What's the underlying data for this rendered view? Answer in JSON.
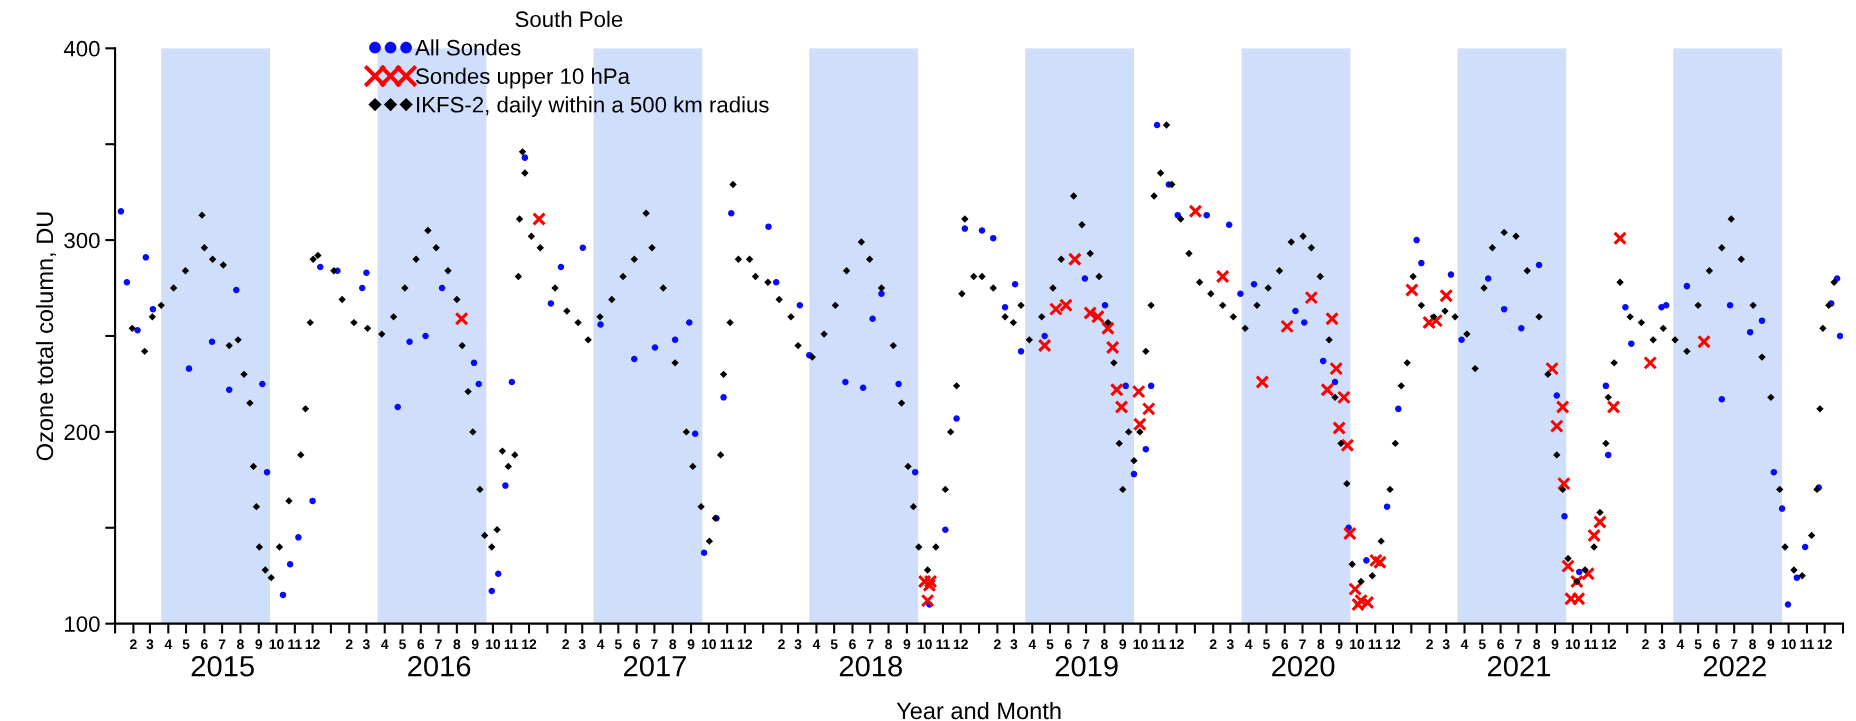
{
  "chart_data": {
    "type": "scatter",
    "xlabel": "Year and Month",
    "ylabel": "Ozone total column, DU",
    "legend_title": "South Pole",
    "legend": "top left",
    "grid": false,
    "xlim": [
      "2015-01-01",
      "2023-01-01"
    ],
    "ylim": [
      100,
      400
    ],
    "yticks": [
      100,
      {
        "value": 150,
        "label": null
      },
      200,
      {
        "value": 250,
        "label": null
      },
      300,
      {
        "value": 350,
        "label": null
      },
      400
    ],
    "xticks": [
      {
        "value": "2015-01-01",
        "label": null
      },
      {
        "value": "2015-02-01",
        "label": "2"
      },
      {
        "value": "2015-03-01",
        "label": "3"
      },
      {
        "value": "2015-04-01",
        "label": "4"
      },
      {
        "value": "2015-05-01",
        "label": "5"
      },
      {
        "value": "2015-06-01",
        "label": "6"
      },
      {
        "value": "2015-07-01",
        "label": "7"
      },
      {
        "value": "2015-08-01",
        "label": "8"
      },
      {
        "value": "2015-09-01",
        "label": "9"
      },
      {
        "value": "2015-10-01",
        "label": "10"
      },
      {
        "value": "2015-11-01",
        "label": "11"
      },
      {
        "value": "2015-12-01",
        "label": "12"
      },
      {
        "value": "2016-01-01",
        "label": null
      },
      {
        "value": "2016-02-01",
        "label": "2"
      },
      {
        "value": "2016-03-01",
        "label": "3"
      },
      {
        "value": "2016-04-01",
        "label": "4"
      },
      {
        "value": "2016-05-01",
        "label": "5"
      },
      {
        "value": "2016-06-01",
        "label": "6"
      },
      {
        "value": "2016-07-01",
        "label": "7"
      },
      {
        "value": "2016-08-01",
        "label": "8"
      },
      {
        "value": "2016-09-01",
        "label": "9"
      },
      {
        "value": "2016-10-01",
        "label": "10"
      },
      {
        "value": "2016-11-01",
        "label": "11"
      },
      {
        "value": "2016-12-01",
        "label": "12"
      },
      {
        "value": "2017-01-01",
        "label": null
      },
      {
        "value": "2017-02-01",
        "label": "2"
      },
      {
        "value": "2017-03-01",
        "label": "3"
      },
      {
        "value": "2017-04-01",
        "label": "4"
      },
      {
        "value": "2017-05-01",
        "label": "5"
      },
      {
        "value": "2017-06-01",
        "label": "6"
      },
      {
        "value": "2017-07-01",
        "label": "7"
      },
      {
        "value": "2017-08-01",
        "label": "8"
      },
      {
        "value": "2017-09-01",
        "label": "9"
      },
      {
        "value": "2017-10-01",
        "label": "10"
      },
      {
        "value": "2017-11-01",
        "label": "11"
      },
      {
        "value": "2017-12-01",
        "label": "12"
      },
      {
        "value": "2018-01-01",
        "label": null
      },
      {
        "value": "2018-02-01",
        "label": "2"
      },
      {
        "value": "2018-03-01",
        "label": "3"
      },
      {
        "value": "2018-04-01",
        "label": "4"
      },
      {
        "value": "2018-05-01",
        "label": "5"
      },
      {
        "value": "2018-06-01",
        "label": "6"
      },
      {
        "value": "2018-07-01",
        "label": "7"
      },
      {
        "value": "2018-08-01",
        "label": "8"
      },
      {
        "value": "2018-09-01",
        "label": "9"
      },
      {
        "value": "2018-10-01",
        "label": "10"
      },
      {
        "value": "2018-11-01",
        "label": "11"
      },
      {
        "value": "2018-12-01",
        "label": "12"
      },
      {
        "value": "2019-01-01",
        "label": null
      },
      {
        "value": "2019-02-01",
        "label": "2"
      },
      {
        "value": "2019-03-01",
        "label": "3"
      },
      {
        "value": "2019-04-01",
        "label": "4"
      },
      {
        "value": "2019-05-01",
        "label": "5"
      },
      {
        "value": "2019-06-01",
        "label": "6"
      },
      {
        "value": "2019-07-01",
        "label": "7"
      },
      {
        "value": "2019-08-01",
        "label": "8"
      },
      {
        "value": "2019-09-01",
        "label": "9"
      },
      {
        "value": "2019-10-01",
        "label": "10"
      },
      {
        "value": "2019-11-01",
        "label": "11"
      },
      {
        "value": "2019-12-01",
        "label": "12"
      },
      {
        "value": "2020-01-01",
        "label": null
      },
      {
        "value": "2020-02-01",
        "label": "2"
      },
      {
        "value": "2020-03-01",
        "label": "3"
      },
      {
        "value": "2020-04-01",
        "label": "4"
      },
      {
        "value": "2020-05-01",
        "label": "5"
      },
      {
        "value": "2020-06-01",
        "label": "6"
      },
      {
        "value": "2020-07-01",
        "label": "7"
      },
      {
        "value": "2020-08-01",
        "label": "8"
      },
      {
        "value": "2020-09-01",
        "label": "9"
      },
      {
        "value": "2020-10-01",
        "label": "10"
      },
      {
        "value": "2020-11-01",
        "label": "11"
      },
      {
        "value": "2020-12-01",
        "label": "12"
      },
      {
        "value": "2021-01-01",
        "label": null
      },
      {
        "value": "2021-02-01",
        "label": "2"
      },
      {
        "value": "2021-03-01",
        "label": "3"
      },
      {
        "value": "2021-04-01",
        "label": "4"
      },
      {
        "value": "2021-05-01",
        "label": "5"
      },
      {
        "value": "2021-06-01",
        "label": "6"
      },
      {
        "value": "2021-07-01",
        "label": "7"
      },
      {
        "value": "2021-08-01",
        "label": "8"
      },
      {
        "value": "2021-09-01",
        "label": "9"
      },
      {
        "value": "2021-10-01",
        "label": "10"
      },
      {
        "value": "2021-11-01",
        "label": "11"
      },
      {
        "value": "2021-12-01",
        "label": "12"
      },
      {
        "value": "2022-01-01",
        "label": null
      },
      {
        "value": "2022-02-01",
        "label": "2"
      },
      {
        "value": "2022-03-01",
        "label": "3"
      },
      {
        "value": "2022-04-01",
        "label": "4"
      },
      {
        "value": "2022-05-01",
        "label": "5"
      },
      {
        "value": "2022-06-01",
        "label": "6"
      },
      {
        "value": "2022-07-01",
        "label": "7"
      },
      {
        "value": "2022-08-01",
        "label": "8"
      },
      {
        "value": "2022-09-01",
        "label": "9"
      },
      {
        "value": "2022-10-01",
        "label": "10"
      },
      {
        "value": "2022-11-01",
        "label": "11"
      },
      {
        "value": "2022-12-01",
        "label": "12"
      },
      {
        "value": "2023-01-01",
        "label": null
      }
    ],
    "x2lim": [
      "2015-01-01",
      "2023-01-01"
    ],
    "x2ticks": [
      {
        "value": "2015-07-02",
        "label": "2015"
      },
      {
        "value": "2016-07-02",
        "label": "2016"
      },
      {
        "value": "2017-07-02",
        "label": "2017"
      },
      {
        "value": "2018-07-02",
        "label": "2018"
      },
      {
        "value": "2019-07-02",
        "label": "2019"
      },
      {
        "value": "2020-07-02",
        "label": "2020"
      },
      {
        "value": "2021-07-02",
        "label": "2021"
      },
      {
        "value": "2022-07-02",
        "label": "2022"
      }
    ],
    "bands": [
      {
        "axis": "x",
        "from": "2015-03-20",
        "to": "2015-09-20",
        "color": "#cfdefb"
      },
      {
        "axis": "x",
        "from": "2016-03-20",
        "to": "2016-09-20",
        "color": "#cfdefb"
      },
      {
        "axis": "x",
        "from": "2017-03-20",
        "to": "2017-09-20",
        "color": "#cfdefb"
      },
      {
        "axis": "x",
        "from": "2018-03-20",
        "to": "2018-09-20",
        "color": "#cfdefb"
      },
      {
        "axis": "x",
        "from": "2019-03-20",
        "to": "2019-09-20",
        "color": "#cfdefb"
      },
      {
        "axis": "x",
        "from": "2020-03-20",
        "to": "2020-09-20",
        "color": "#cfdefb"
      },
      {
        "axis": "x",
        "from": "2021-03-20",
        "to": "2021-09-20",
        "color": "#cfdefb"
      },
      {
        "axis": "x",
        "from": "2022-03-20",
        "to": "2022-09-20",
        "color": "#cfdefb"
      }
    ],
    "series": [
      {
        "name": "All Sondes",
        "color": "#0a0aff",
        "marker": "circle",
        "x": [
          "2015-01-11",
          "2015-01-21",
          "2015-02-08",
          "2015-02-22",
          "2015-03-06",
          "2015-05-06",
          "2015-06-14",
          "2015-07-13",
          "2015-07-25",
          "2015-09-07",
          "2015-09-15",
          "2015-10-12",
          "2015-10-24",
          "2015-11-07",
          "2015-12-01",
          "2015-12-14",
          "2016-01-12",
          "2016-02-23",
          "2016-03-01",
          "2016-04-23",
          "2016-05-13",
          "2016-06-09",
          "2016-07-07",
          "2016-08-30",
          "2016-09-07",
          "2016-09-29",
          "2016-10-10",
          "2016-10-22",
          "2016-11-02",
          "2016-11-24",
          "2017-01-07",
          "2017-01-24",
          "2017-03-02",
          "2017-04-01",
          "2017-05-28",
          "2017-07-02",
          "2017-08-05",
          "2017-08-29",
          "2017-09-08",
          "2017-09-23",
          "2017-10-14",
          "2017-10-26",
          "2017-11-08",
          "2018-01-10",
          "2018-01-23",
          "2018-03-04",
          "2018-03-20",
          "2018-05-20",
          "2018-06-19",
          "2018-07-05",
          "2018-07-20",
          "2018-08-18",
          "2018-09-15",
          "2018-10-09",
          "2018-11-05",
          "2018-11-24",
          "2018-12-08",
          "2019-01-06",
          "2019-01-25",
          "2019-02-14",
          "2019-03-03",
          "2019-03-13",
          "2019-04-22",
          "2019-06-29",
          "2019-08-02",
          "2019-09-06",
          "2019-09-20",
          "2019-10-10",
          "2019-10-19",
          "2019-10-29",
          "2019-11-18",
          "2019-12-03",
          "2020-01-21",
          "2020-02-28",
          "2020-03-18",
          "2020-04-10",
          "2020-06-19",
          "2020-07-04",
          "2020-08-05",
          "2020-08-25",
          "2020-09-17",
          "2020-10-17",
          "2020-11-21",
          "2020-12-10",
          "2021-01-10",
          "2021-01-18",
          "2021-03-09",
          "2021-03-27",
          "2021-05-11",
          "2021-06-07",
          "2021-07-06",
          "2021-08-05",
          "2021-09-04",
          "2021-09-17",
          "2021-10-12",
          "2021-11-26",
          "2021-11-30",
          "2021-12-29",
          "2022-01-08",
          "2022-02-28",
          "2022-03-08",
          "2022-04-12",
          "2022-06-10",
          "2022-06-24",
          "2022-07-28",
          "2022-08-17",
          "2022-09-06",
          "2022-09-20",
          "2022-09-30",
          "2022-10-15",
          "2022-10-29",
          "2022-11-21",
          "2022-12-12",
          "2022-12-22",
          "2022-12-27"
        ],
        "values": [
          315,
          278,
          253,
          291,
          264,
          233,
          247,
          222,
          274,
          225,
          179,
          115,
          131,
          145,
          164,
          286,
          284,
          275,
          283,
          213,
          247,
          250,
          275,
          236,
          225,
          117,
          126,
          172,
          226,
          343,
          267,
          286,
          296,
          256,
          238,
          244,
          248,
          257,
          199,
          137,
          155,
          218,
          314,
          307,
          278,
          266,
          240,
          226,
          223,
          259,
          272,
          225,
          179,
          110,
          149,
          207,
          306,
          305,
          301,
          265,
          277,
          242,
          250,
          280,
          266,
          224,
          178,
          191,
          224,
          360,
          329,
          313,
          313,
          308,
          272,
          277,
          263,
          257,
          237,
          226,
          150,
          133,
          161,
          212,
          300,
          288,
          282,
          248,
          280,
          264,
          254,
          287,
          219,
          156,
          127,
          224,
          188,
          265,
          246,
          265,
          266,
          276,
          217,
          266,
          252,
          258,
          179,
          160,
          110,
          124,
          140,
          171,
          267,
          280,
          250
        ]
      },
      {
        "name": "Sondes upper 10 hPa",
        "color": "#ff0000",
        "marker": "cross",
        "x": [
          "2016-08-09",
          "2016-12-18",
          "2018-10-01",
          "2018-10-06",
          "2018-10-09",
          "2018-10-11",
          "2019-04-22",
          "2019-05-11",
          "2019-05-28",
          "2019-06-12",
          "2019-07-08",
          "2019-07-21",
          "2019-08-07",
          "2019-08-15",
          "2019-08-22",
          "2019-08-30",
          "2019-09-28",
          "2019-09-30",
          "2019-10-15",
          "2020-01-02",
          "2020-02-17",
          "2020-04-24",
          "2020-06-05",
          "2020-07-16",
          "2020-08-12",
          "2020-08-20",
          "2020-08-27",
          "2020-09-01",
          "2020-09-09",
          "2020-09-15",
          "2020-09-19",
          "2020-09-28",
          "2020-10-03",
          "2020-10-08",
          "2020-10-19",
          "2020-11-02",
          "2020-11-09",
          "2021-01-02",
          "2021-01-31",
          "2021-02-12",
          "2021-03-01",
          "2021-08-27",
          "2021-09-04",
          "2021-09-14",
          "2021-09-16",
          "2021-09-23",
          "2021-09-28",
          "2021-10-08",
          "2021-10-11",
          "2021-10-27",
          "2021-11-06",
          "2021-11-16",
          "2021-12-09",
          "2021-12-20",
          "2022-02-09",
          "2022-05-11"
        ],
        "values": [
          259,
          311,
          122,
          112,
          120,
          122,
          245,
          264,
          266,
          290,
          262,
          260,
          254,
          244,
          222,
          213,
          221,
          204,
          212,
          315,
          281,
          226,
          255,
          270,
          222,
          259,
          233,
          202,
          218,
          193,
          147,
          118,
          110,
          112,
          111,
          133,
          132,
          274,
          257,
          258,
          271,
          233,
          203,
          213,
          173,
          130,
          113,
          122,
          113,
          126,
          146,
          153,
          213,
          301,
          236,
          247
        ]
      },
      {
        "name": "IKFS-2, daily within a 500 km radius",
        "color": "#000000",
        "marker": "diamond",
        "x": [
          "2015-01-30",
          "2015-02-20",
          "2015-03-05",
          "2015-03-20",
          "2015-04-10",
          "2015-04-30",
          "2015-05-28",
          "2015-06-01",
          "2015-06-15",
          "2015-07-03",
          "2015-07-13",
          "2015-07-28",
          "2015-08-07",
          "2015-08-17",
          "2015-08-23",
          "2015-08-28",
          "2015-09-02",
          "2015-09-12",
          "2015-09-22",
          "2015-10-06",
          "2015-10-22",
          "2015-11-11",
          "2015-11-19",
          "2015-11-27",
          "2015-12-02",
          "2015-12-10",
          "2016-01-06",
          "2016-01-20",
          "2016-02-09",
          "2016-03-03",
          "2016-03-27",
          "2016-04-16",
          "2016-05-05",
          "2016-05-24",
          "2016-06-13",
          "2016-06-27",
          "2016-07-17",
          "2016-08-01",
          "2016-08-10",
          "2016-08-20",
          "2016-08-28",
          "2016-09-09",
          "2016-09-17",
          "2016-09-29",
          "2016-10-08",
          "2016-10-17",
          "2016-10-27",
          "2016-11-07",
          "2016-11-13",
          "2016-11-15",
          "2016-11-20",
          "2016-11-24",
          "2016-12-05",
          "2016-12-20",
          "2017-01-14",
          "2017-02-03",
          "2017-02-22",
          "2017-03-11",
          "2017-03-31",
          "2017-04-20",
          "2017-05-09",
          "2017-05-28",
          "2017-06-17",
          "2017-06-27",
          "2017-07-16",
          "2017-08-05",
          "2017-08-24",
          "2017-09-04",
          "2017-09-18",
          "2017-10-02",
          "2017-10-12",
          "2017-10-21",
          "2017-10-26",
          "2017-11-06",
          "2017-11-11",
          "2017-11-20",
          "2017-12-09",
          "2017-12-19",
          "2018-01-09",
          "2018-01-28",
          "2018-02-17",
          "2018-03-01",
          "2018-03-25",
          "2018-04-14",
          "2018-05-03",
          "2018-05-22",
          "2018-06-16",
          "2018-06-30",
          "2018-07-20",
          "2018-08-09",
          "2018-08-23",
          "2018-09-03",
          "2018-09-12",
          "2018-09-21",
          "2018-10-06",
          "2018-10-20",
          "2018-11-05",
          "2018-11-14",
          "2018-11-24",
          "2018-12-03",
          "2018-12-08",
          "2018-12-23",
          "2019-01-06",
          "2019-01-25",
          "2019-02-14",
          "2019-02-28",
          "2019-03-13",
          "2019-03-27",
          "2019-04-17",
          "2019-05-06",
          "2019-05-20",
          "2019-06-10",
          "2019-06-24",
          "2019-07-08",
          "2019-07-23",
          "2019-08-07",
          "2019-08-17",
          "2019-08-26",
          "2019-09-01",
          "2019-09-11",
          "2019-09-20",
          "2019-09-30",
          "2019-10-10",
          "2019-10-19",
          "2019-10-24",
          "2019-11-04",
          "2019-11-14",
          "2019-11-23",
          "2019-12-08",
          "2019-12-22",
          "2020-01-09",
          "2020-01-28",
          "2020-02-17",
          "2020-03-06",
          "2020-03-26",
          "2020-04-15",
          "2020-05-04",
          "2020-05-23",
          "2020-06-12",
          "2020-07-02",
          "2020-07-16",
          "2020-07-31",
          "2020-08-15",
          "2020-08-25",
          "2020-09-04",
          "2020-09-14",
          "2020-09-23",
          "2020-10-08",
          "2020-10-27",
          "2020-11-11",
          "2020-11-26",
          "2020-12-05",
          "2020-12-15",
          "2020-12-25",
          "2021-01-04",
          "2021-01-18",
          "2021-02-08",
          "2021-02-27",
          "2021-03-16",
          "2021-04-05",
          "2021-04-19",
          "2021-05-04",
          "2021-05-18",
          "2021-06-07",
          "2021-06-27",
          "2021-07-16",
          "2021-08-05",
          "2021-08-20",
          "2021-09-04",
          "2021-09-14",
          "2021-09-23",
          "2021-10-08",
          "2021-10-22",
          "2021-11-06",
          "2021-11-16",
          "2021-11-26",
          "2021-11-30",
          "2021-12-10",
          "2021-12-20",
          "2022-01-06",
          "2022-01-25",
          "2022-02-14",
          "2022-03-03",
          "2022-03-23",
          "2022-04-12",
          "2022-05-01",
          "2022-05-20",
          "2022-06-10",
          "2022-06-26",
          "2022-07-13",
          "2022-08-02",
          "2022-08-17",
          "2022-09-01",
          "2022-09-16",
          "2022-09-25",
          "2022-10-10",
          "2022-10-24",
          "2022-11-09",
          "2022-11-18",
          "2022-11-23",
          "2022-11-28",
          "2022-12-08",
          "2022-12-17"
        ],
        "values": [
          254,
          242,
          260,
          266,
          275,
          284,
          313,
          296,
          290,
          287,
          245,
          248,
          230,
          215,
          182,
          161,
          140,
          128,
          124,
          140,
          164,
          188,
          212,
          257,
          290,
          292,
          284,
          269,
          257,
          254,
          251,
          260,
          275,
          290,
          305,
          296,
          284,
          269,
          245,
          221,
          200,
          170,
          146,
          140,
          149,
          190,
          182,
          188,
          281,
          311,
          346,
          335,
          302,
          296,
          275,
          263,
          257,
          248,
          260,
          269,
          281,
          290,
          314,
          296,
          275,
          236,
          200,
          182,
          161,
          143,
          155,
          188,
          230,
          257,
          329,
          290,
          290,
          281,
          278,
          269,
          260,
          245,
          239,
          251,
          266,
          284,
          299,
          290,
          275,
          245,
          215,
          182,
          161,
          140,
          128,
          140,
          170,
          200,
          224,
          272,
          311,
          281,
          281,
          275,
          260,
          257,
          266,
          248,
          260,
          275,
          290,
          323,
          308,
          293,
          281,
          257,
          236,
          194,
          170,
          200,
          185,
          200,
          242,
          266,
          323,
          335,
          360,
          329,
          311,
          293,
          278,
          272,
          266,
          260,
          254,
          266,
          275,
          284,
          299,
          302,
          296,
          281,
          248,
          218,
          194,
          173,
          131,
          122,
          125,
          143,
          170,
          194,
          224,
          236,
          281,
          266,
          260,
          263,
          260,
          251,
          233,
          275,
          296,
          304,
          302,
          284,
          260,
          230,
          188,
          170,
          134,
          122,
          128,
          140,
          158,
          194,
          218,
          236,
          278,
          260,
          257,
          248,
          254,
          248,
          242,
          266,
          284,
          296,
          311,
          290,
          266,
          239,
          218,
          170,
          140,
          128,
          125,
          146,
          170,
          212,
          254,
          266,
          278
        ]
      }
    ]
  }
}
